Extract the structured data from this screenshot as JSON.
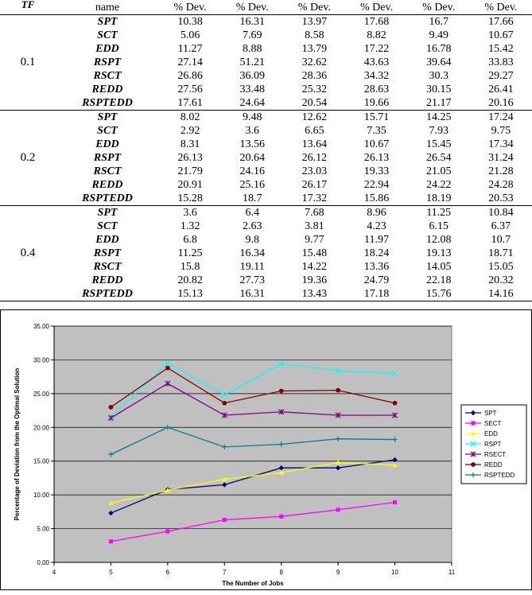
{
  "table": {
    "headers": [
      "TF",
      "name",
      "% Dev.",
      "% Dev.",
      "% Dev.",
      "% Dev.",
      "% Dev.",
      "% Dev."
    ],
    "groups": [
      {
        "tf": "0.1",
        "rows": [
          {
            "rule": "SPT",
            "values": [
              10.38,
              16.31,
              13.97,
              17.68,
              16.7,
              17.66
            ]
          },
          {
            "rule": "SCT",
            "values": [
              5.06,
              7.69,
              8.58,
              8.82,
              9.49,
              10.67
            ]
          },
          {
            "rule": "EDD",
            "values": [
              11.27,
              8.88,
              13.79,
              17.22,
              16.78,
              15.42
            ]
          },
          {
            "rule": "RSPT",
            "values": [
              27.14,
              51.21,
              32.62,
              43.63,
              39.64,
              33.83
            ]
          },
          {
            "rule": "RSCT",
            "values": [
              26.86,
              36.09,
              28.36,
              34.32,
              30.3,
              29.27
            ]
          },
          {
            "rule": "REDD",
            "values": [
              27.56,
              33.48,
              25.32,
              28.63,
              30.15,
              26.41
            ]
          },
          {
            "rule": "RSPTEDD",
            "values": [
              17.61,
              24.64,
              20.54,
              19.66,
              21.17,
              20.16
            ]
          }
        ]
      },
      {
        "tf": "0.2",
        "rows": [
          {
            "rule": "SPT",
            "values": [
              8.02,
              9.48,
              12.62,
              15.71,
              14.25,
              17.24
            ]
          },
          {
            "rule": "SCT",
            "values": [
              2.92,
              3.6,
              6.65,
              7.35,
              7.93,
              9.75
            ]
          },
          {
            "rule": "EDD",
            "values": [
              8.31,
              13.56,
              13.64,
              10.67,
              15.45,
              17.34
            ]
          },
          {
            "rule": "RSPT",
            "values": [
              26.13,
              20.64,
              26.12,
              26.13,
              26.54,
              31.24
            ]
          },
          {
            "rule": "RSCT",
            "values": [
              21.79,
              24.16,
              23.03,
              19.33,
              21.05,
              21.28
            ]
          },
          {
            "rule": "REDD",
            "values": [
              20.91,
              25.16,
              26.17,
              22.94,
              24.22,
              24.28
            ]
          },
          {
            "rule": "RSPTEDD",
            "values": [
              15.28,
              18.7,
              17.32,
              15.86,
              18.19,
              20.53
            ]
          }
        ]
      },
      {
        "tf": "0.4",
        "rows": [
          {
            "rule": "SPT",
            "values": [
              3.6,
              6.4,
              7.68,
              8.96,
              11.25,
              10.84
            ]
          },
          {
            "rule": "SCT",
            "values": [
              1.32,
              2.63,
              3.81,
              4.23,
              6.15,
              6.37
            ]
          },
          {
            "rule": "EDD",
            "values": [
              6.8,
              9.8,
              9.77,
              11.97,
              12.08,
              10.7
            ]
          },
          {
            "rule": "RSPT",
            "values": [
              11.25,
              16.34,
              15.48,
              18.24,
              19.13,
              18.71
            ]
          },
          {
            "rule": "RSCT",
            "values": [
              15.8,
              19.11,
              14.22,
              13.36,
              14.05,
              15.05
            ]
          },
          {
            "rule": "REDD",
            "values": [
              20.82,
              27.73,
              19.36,
              24.79,
              22.18,
              20.32
            ]
          },
          {
            "rule": "RSPTEDD",
            "values": [
              15.13,
              16.31,
              13.43,
              17.18,
              15.76,
              14.16
            ]
          }
        ]
      }
    ]
  },
  "chart_data": {
    "type": "line",
    "x_label": "The Number of Jobs",
    "y_label": "Percentage of Deviation from the Optimal Solution",
    "x": [
      5,
      6,
      7,
      8,
      9,
      10
    ],
    "xlim": [
      4,
      11
    ],
    "xticks": [
      4,
      5,
      6,
      7,
      8,
      9,
      10,
      11
    ],
    "ylim": [
      0,
      35
    ],
    "yticks": [
      {
        "value": 0,
        "label": "0.00"
      },
      {
        "value": 5,
        "label": "5.00"
      },
      {
        "value": 10,
        "label": "10.00"
      },
      {
        "value": 15,
        "label": "15.00"
      },
      {
        "value": 20,
        "label": "20.00"
      },
      {
        "value": 25,
        "label": "25.00"
      },
      {
        "value": 30,
        "label": "30.00"
      },
      {
        "value": 35,
        "label": "35.00"
      }
    ],
    "grid": true,
    "legend": "right",
    "series": [
      {
        "name": "SPT",
        "color": "#000080",
        "values": [
          7.3,
          10.8,
          11.5,
          14.0,
          14.0,
          15.2
        ]
      },
      {
        "name": "SECT",
        "color": "#ff00ff",
        "values": [
          3.1,
          4.6,
          6.3,
          6.8,
          7.8,
          8.9
        ]
      },
      {
        "name": "EDD",
        "color": "#ffff00",
        "values": [
          8.8,
          10.7,
          12.3,
          13.3,
          14.8,
          14.4
        ]
      },
      {
        "name": "RSPT",
        "color": "#00ffff",
        "values": [
          21.5,
          29.5,
          24.8,
          29.4,
          28.4,
          28.0
        ]
      },
      {
        "name": "RSECT",
        "color": "#800080",
        "values": [
          21.4,
          26.5,
          21.8,
          22.3,
          21.8,
          21.8
        ]
      },
      {
        "name": "REDD",
        "color": "#800000",
        "values": [
          23.0,
          28.8,
          23.6,
          25.4,
          25.5,
          23.6
        ]
      },
      {
        "name": "RSPTEDD",
        "color": "#008080",
        "values": [
          16.0,
          20.0,
          17.1,
          17.5,
          18.3,
          18.2
        ]
      }
    ]
  }
}
